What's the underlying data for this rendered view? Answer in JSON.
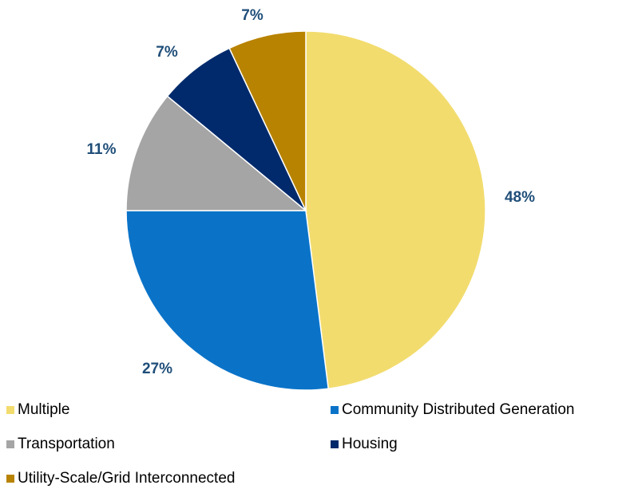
{
  "chart_data": {
    "type": "pie",
    "title": "",
    "slices": [
      {
        "name": "Multiple",
        "value": 48,
        "label": "48%",
        "color": "#f2dc6e"
      },
      {
        "name": "Community Distributed Generation",
        "value": 27,
        "label": "27%",
        "color": "#0a73c8"
      },
      {
        "name": "Transportation",
        "value": 11,
        "label": "11%",
        "color": "#a5a5a5"
      },
      {
        "name": "Housing",
        "value": 7,
        "label": "7%",
        "color": "#002a6b"
      },
      {
        "name": "Utility-Scale/Grid Interconnected",
        "value": 7,
        "label": "7%",
        "color": "#b88300"
      }
    ],
    "start_angle_deg": 0,
    "direction": "clockwise",
    "legend_position": "bottom",
    "label_color": "#1f4e79"
  }
}
